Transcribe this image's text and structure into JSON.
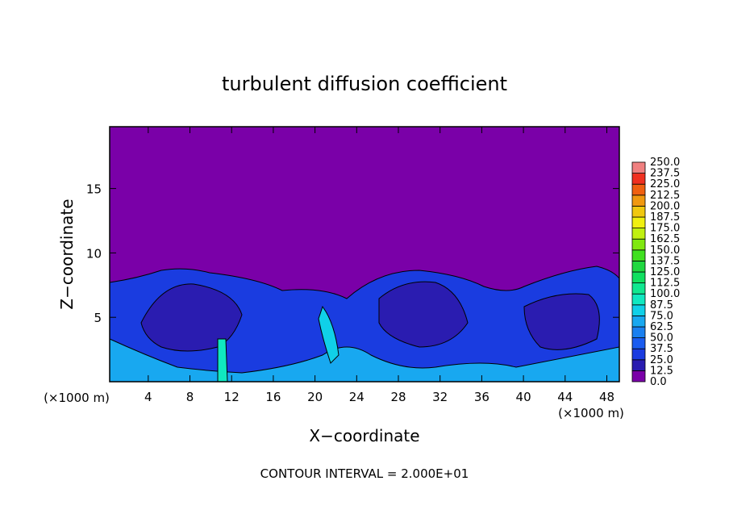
{
  "chart_data": {
    "type": "contour",
    "title": "turbulent diffusion coefficient",
    "xlabel": "X−coordinate",
    "ylabel": "Z−coordinate",
    "x_unit_left": "(×1000 m)",
    "x_unit_right": "(×1000 m)",
    "footer": "CONTOUR INTERVAL = 2.000E+01",
    "background_color": "#7a00a8",
    "xlim": [
      0.3,
      49.2
    ],
    "ylim": [
      0,
      19.8
    ],
    "xticks": [
      4,
      8,
      12,
      16,
      20,
      24,
      28,
      32,
      36,
      40,
      44,
      48
    ],
    "yticks": [
      5,
      10,
      15
    ],
    "colorbar": {
      "levels": [
        {
          "value": 0,
          "label": "0.0"
        },
        {
          "value": 12.5,
          "label": "12.5"
        },
        {
          "value": 25,
          "label": "25.0"
        },
        {
          "value": 37.5,
          "label": "37.5"
        },
        {
          "value": 50,
          "label": "50.0"
        },
        {
          "value": 62.5,
          "label": "62.5"
        },
        {
          "value": 75,
          "label": "75.0"
        },
        {
          "value": 87.5,
          "label": "87.5"
        },
        {
          "value": 100,
          "label": "100.0"
        },
        {
          "value": 112.5,
          "label": "112.5"
        },
        {
          "value": 125,
          "label": "125.0"
        },
        {
          "value": 137.5,
          "label": "137.5"
        },
        {
          "value": 150,
          "label": "150.0"
        },
        {
          "value": 162.5,
          "label": "162.5"
        },
        {
          "value": 175,
          "label": "175.0"
        },
        {
          "value": 187.5,
          "label": "187.5"
        },
        {
          "value": 200,
          "label": "200.0"
        },
        {
          "value": 212.5,
          "label": "212.5"
        },
        {
          "value": 225,
          "label": "225.0"
        },
        {
          "value": 237.5,
          "label": "237.5"
        },
        {
          "value": 250,
          "label": "250.0"
        }
      ],
      "colors": [
        "#7a00a8",
        "#2a1cb0",
        "#1a3ce0",
        "#1a5cf0",
        "#1a80f0",
        "#18a8f0",
        "#10d0e8",
        "#10e8c0",
        "#10e890",
        "#10e060",
        "#20d840",
        "#40e020",
        "#80e810",
        "#c0f010",
        "#f0f010",
        "#f0c810",
        "#f09810",
        "#f06010",
        "#f03020",
        "#f08080"
      ]
    }
  }
}
